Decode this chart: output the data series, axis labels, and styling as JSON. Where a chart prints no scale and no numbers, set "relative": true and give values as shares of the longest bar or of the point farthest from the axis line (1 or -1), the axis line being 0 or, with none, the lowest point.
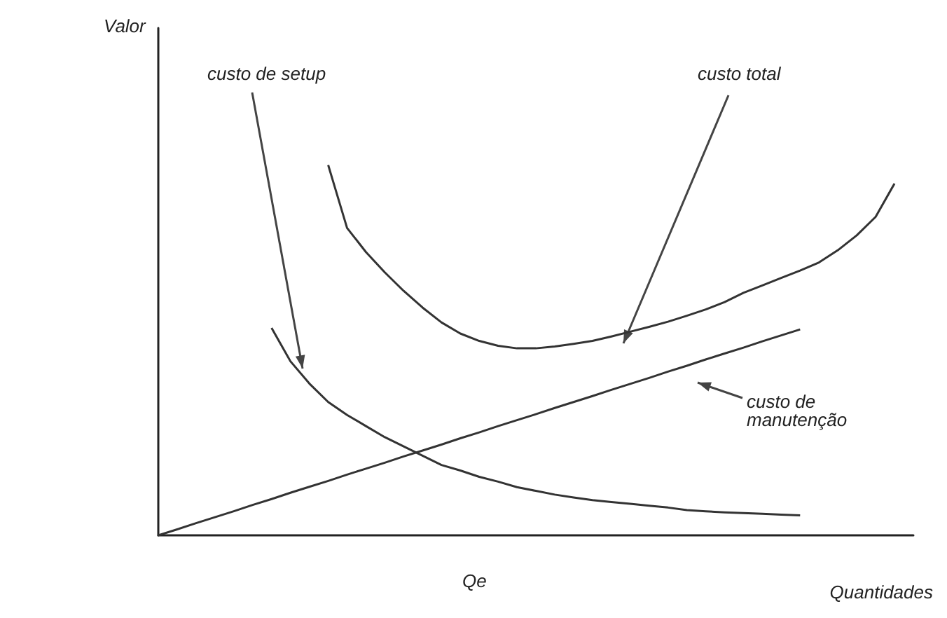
{
  "chart_data": {
    "type": "line",
    "relative": true,
    "xlabel": "Quantidades",
    "annotations": [
      "Valor",
      "Qe"
    ],
    "marker": "none",
    "legend": false,
    "grid": false,
    "categories": [
      null,
      null,
      null,
      null,
      null,
      null,
      null,
      null,
      null,
      null,
      null,
      null,
      null,
      null,
      null,
      null,
      null,
      null,
      null,
      null,
      null,
      null,
      null,
      null,
      null,
      null,
      null,
      null,
      null,
      null,
      null,
      null,
      null,
      null,
      null,
      null,
      null,
      null,
      null,
      null,
      null
    ],
    "series": [
      {
        "name": "custo de setup",
        "color": "#333333",
        "values": [
          null,
          null,
          null,
          null,
          null,
          null,
          0.56,
          0.47,
          0.41,
          0.36,
          0.325,
          0.295,
          0.265,
          0.24,
          0.215,
          0.19,
          0.175,
          0.158,
          0.145,
          0.13,
          0.12,
          0.11,
          0.102,
          0.095,
          0.09,
          0.085,
          0.08,
          0.075,
          0.068,
          0.065,
          0.062,
          0.06,
          0.058,
          0.056,
          0.054,
          null,
          null,
          null,
          null,
          null,
          null
        ]
      },
      {
        "name": "custo total",
        "color": "#333333",
        "values": [
          null,
          null,
          null,
          null,
          null,
          null,
          null,
          null,
          null,
          1.0,
          0.83,
          0.765,
          0.71,
          0.66,
          0.615,
          0.575,
          0.545,
          0.525,
          0.512,
          0.505,
          0.505,
          0.51,
          0.517,
          0.525,
          0.537,
          0.55,
          0.563,
          0.577,
          0.593,
          0.61,
          0.63,
          0.655,
          0.675,
          0.695,
          0.715,
          0.737,
          0.77,
          0.81,
          0.86,
          0.95,
          null
        ]
      },
      {
        "name": "custo de manutenção",
        "color": "#333333",
        "values": [
          0,
          0.016,
          0.033,
          0.049,
          0.065,
          0.082,
          0.098,
          0.115,
          0.131,
          0.147,
          0.164,
          0.18,
          0.196,
          0.213,
          0.229,
          0.245,
          0.262,
          0.278,
          0.295,
          0.311,
          0.327,
          0.344,
          0.36,
          0.376,
          0.393,
          0.409,
          0.425,
          0.442,
          0.458,
          0.475,
          0.491,
          0.507,
          0.524,
          0.54,
          0.556,
          null,
          null,
          null,
          null,
          null,
          null
        ]
      }
    ]
  }
}
